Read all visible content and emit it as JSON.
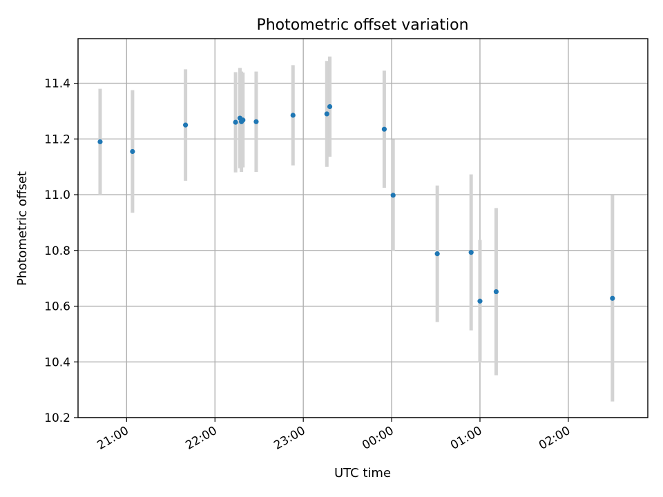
{
  "chart_data": {
    "type": "scatter",
    "title": "Photometric offset variation",
    "xlabel": "UTC time",
    "ylabel": "Photometric offset",
    "x_axis_kind": "time",
    "xlim": [
      "20:27",
      "02:54"
    ],
    "ylim": [
      10.2,
      11.56
    ],
    "xticks": [
      {
        "time": "21:00",
        "label": "21:00"
      },
      {
        "time": "22:00",
        "label": "22:00"
      },
      {
        "time": "23:00",
        "label": "23:00"
      },
      {
        "time": "00:00",
        "label": "00:00"
      },
      {
        "time": "01:00",
        "label": "01:00"
      },
      {
        "time": "02:00",
        "label": "02:00"
      }
    ],
    "yticks": [
      {
        "value": 10.2,
        "label": "10.2"
      },
      {
        "value": 10.4,
        "label": "10.4"
      },
      {
        "value": 10.6,
        "label": "10.6"
      },
      {
        "value": 10.8,
        "label": "10.8"
      },
      {
        "value": 11.0,
        "label": "11.0"
      },
      {
        "value": 11.2,
        "label": "11.2"
      },
      {
        "value": 11.4,
        "label": "11.4"
      }
    ],
    "grid": true,
    "point_color": "#1f77b4",
    "errorbar_color": "#d3d3d3",
    "points": [
      {
        "time": "20:42",
        "y": 11.19,
        "err": 0.19
      },
      {
        "time": "21:04",
        "y": 11.155,
        "err": 0.22
      },
      {
        "time": "21:40",
        "y": 11.25,
        "err": 0.2
      },
      {
        "time": "22:14",
        "y": 11.26,
        "err": 0.18
      },
      {
        "time": "22:17",
        "y": 11.275,
        "err": 0.18
      },
      {
        "time": "22:18",
        "y": 11.262,
        "err": 0.18
      },
      {
        "time": "22:19",
        "y": 11.268,
        "err": 0.17
      },
      {
        "time": "22:28",
        "y": 11.262,
        "err": 0.18
      },
      {
        "time": "22:53",
        "y": 11.285,
        "err": 0.18
      },
      {
        "time": "23:16",
        "y": 11.29,
        "err": 0.19
      },
      {
        "time": "23:18",
        "y": 11.316,
        "err": 0.18
      },
      {
        "time": "23:55",
        "y": 11.235,
        "err": 0.21
      },
      {
        "time": "00:01",
        "y": 10.998,
        "err": 0.2
      },
      {
        "time": "00:31",
        "y": 10.788,
        "err": 0.245
      },
      {
        "time": "00:54",
        "y": 10.793,
        "err": 0.28
      },
      {
        "time": "01:00",
        "y": 10.618,
        "err": 0.22
      },
      {
        "time": "01:11",
        "y": 10.652,
        "err": 0.3
      },
      {
        "time": "02:30",
        "y": 10.628,
        "err": 0.37
      }
    ]
  }
}
